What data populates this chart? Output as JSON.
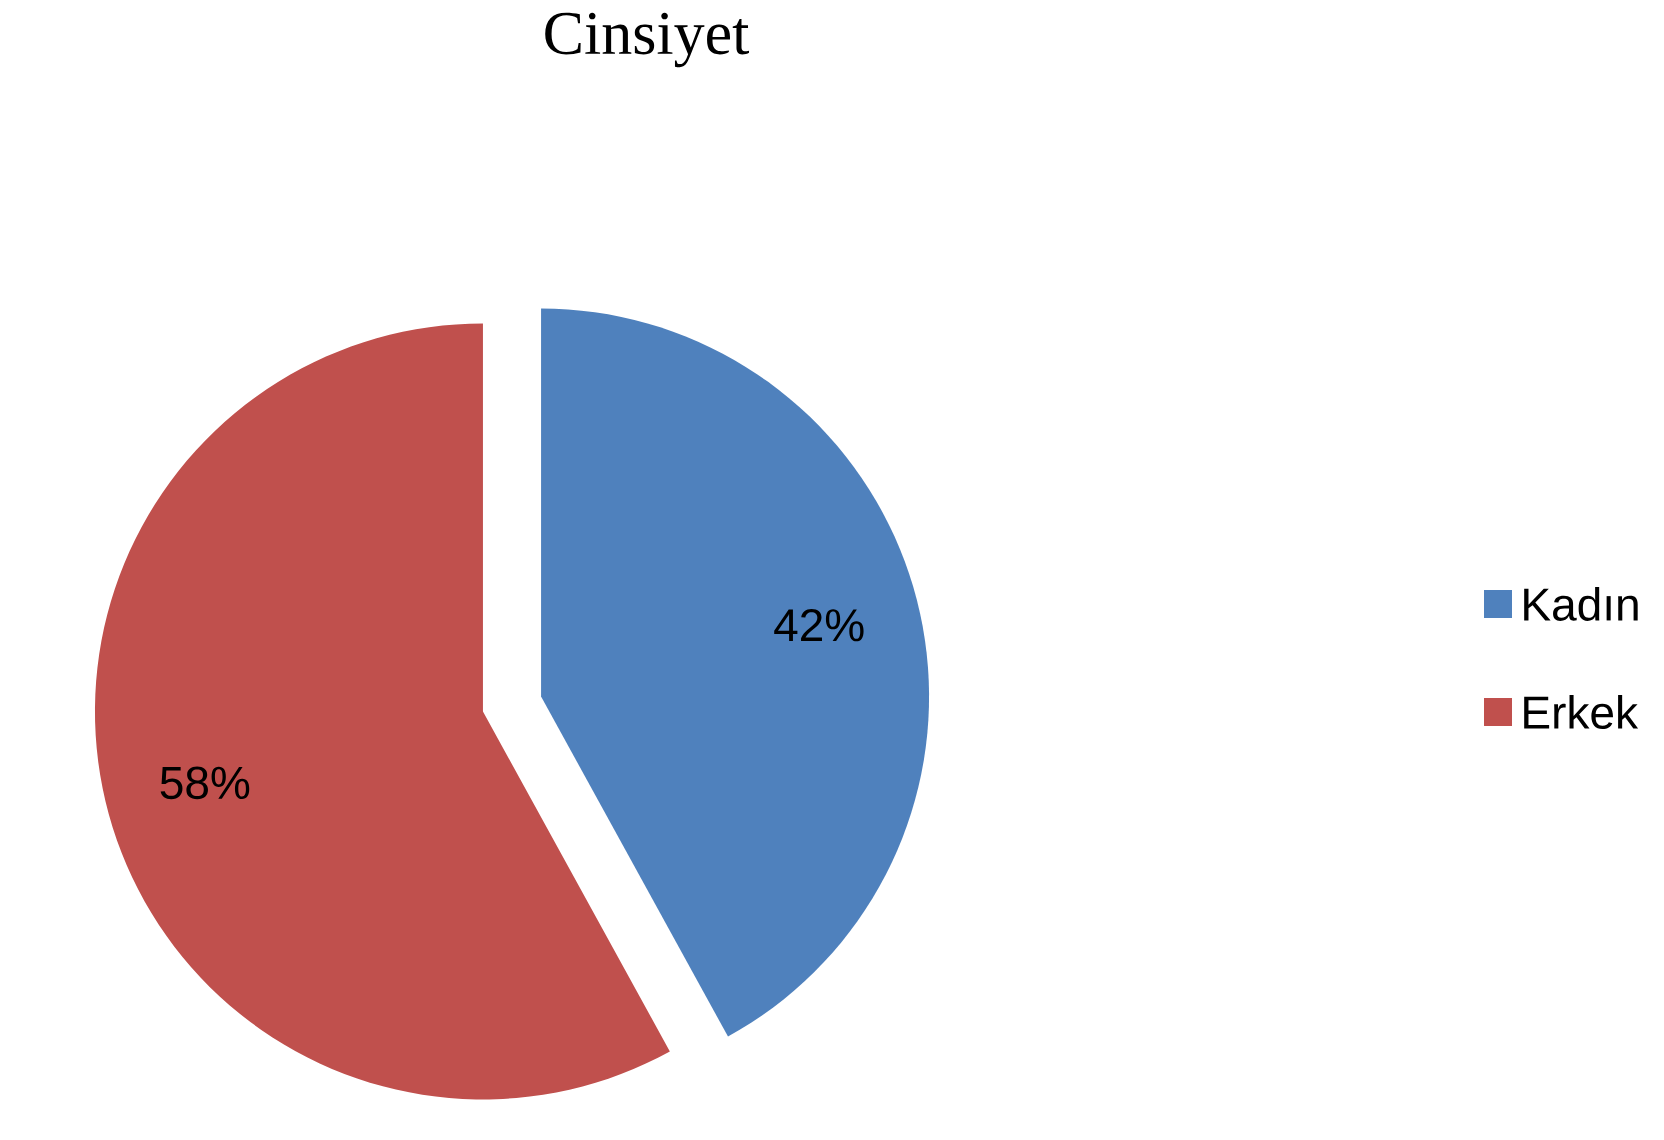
{
  "chart_data": {
    "type": "pie",
    "title": "Cinsiyet",
    "categories": [
      "Kadın",
      "Erkek"
    ],
    "values": [
      42,
      58
    ],
    "colors": [
      "#4f81bd",
      "#c0504d"
    ],
    "value_labels": [
      "42%",
      "58%"
    ],
    "legend": "right"
  }
}
